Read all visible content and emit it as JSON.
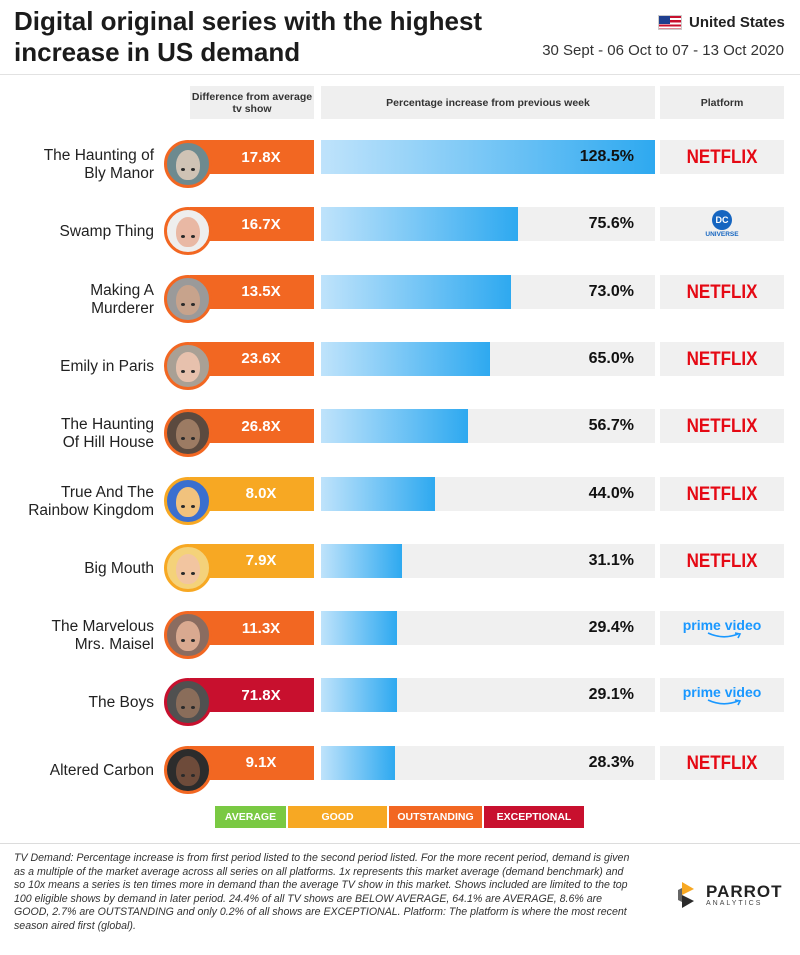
{
  "header": {
    "title_line1": "Digital original series with the highest",
    "title_line2": "increase in US demand",
    "country": "United States",
    "period": "30 Sept - 06 Oct to 07 - 13 Oct 2020"
  },
  "columns": {
    "multiplier": "Difference from average tv show",
    "increase": "Percentage increase from previous week",
    "platform": "Platform"
  },
  "colors": {
    "average": "#7ac943",
    "good": "#f7a823",
    "outstanding": "#f26722",
    "exceptional": "#c8102e",
    "bar_start": "#bfe3fb",
    "bar_end": "#2ea9f0",
    "netflix": "#e50914",
    "prime": "#1a98ff"
  },
  "chart_data": {
    "type": "bar",
    "xlabel": "Percentage increase from previous week",
    "ylabel": "",
    "xlim": [
      0,
      128.5
    ],
    "categories": [
      "The Haunting of Bly Manor",
      "Swamp Thing",
      "Making A Murderer",
      "Emily in Paris",
      "The Haunting Of Hill House",
      "True And The Rainbow Kingdom",
      "Big Mouth",
      "The Marvelous Mrs. Maisel",
      "The Boys",
      "Altered Carbon"
    ],
    "rows": [
      {
        "label1": "The Haunting of",
        "label2": "Bly Manor",
        "multiplier": "17.8X",
        "tier": "outstanding",
        "value": 128.5,
        "value_label": "128.5%",
        "platform": "NETFLIX",
        "platform_icon": "netflix-logo"
      },
      {
        "label1": "Swamp Thing",
        "label2": "",
        "multiplier": "16.7X",
        "tier": "outstanding",
        "value": 75.6,
        "value_label": "75.6%",
        "platform": "DC",
        "platform_sub": "UNIVERSE",
        "platform_icon": "dc-universe-logo"
      },
      {
        "label1": "Making A",
        "label2": "Murderer",
        "multiplier": "13.5X",
        "tier": "outstanding",
        "value": 73.0,
        "value_label": "73.0%",
        "platform": "NETFLIX",
        "platform_icon": "netflix-logo"
      },
      {
        "label1": "Emily in Paris",
        "label2": "",
        "multiplier": "23.6X",
        "tier": "outstanding",
        "value": 65.0,
        "value_label": "65.0%",
        "platform": "NETFLIX",
        "platform_icon": "netflix-logo"
      },
      {
        "label1": "The Haunting",
        "label2": "Of Hill House",
        "multiplier": "26.8X",
        "tier": "outstanding",
        "value": 56.7,
        "value_label": "56.7%",
        "platform": "NETFLIX",
        "platform_icon": "netflix-logo"
      },
      {
        "label1": "True And The",
        "label2": "Rainbow Kingdom",
        "multiplier": "8.0X",
        "tier": "good",
        "value": 44.0,
        "value_label": "44.0%",
        "platform": "NETFLIX",
        "platform_icon": "netflix-logo"
      },
      {
        "label1": "Big Mouth",
        "label2": "",
        "multiplier": "7.9X",
        "tier": "good",
        "value": 31.1,
        "value_label": "31.1%",
        "platform": "NETFLIX",
        "platform_icon": "netflix-logo"
      },
      {
        "label1": "The Marvelous",
        "label2": "Mrs. Maisel",
        "multiplier": "11.3X",
        "tier": "outstanding",
        "value": 29.4,
        "value_label": "29.4%",
        "platform": "prime video",
        "platform_icon": "prime-video-logo"
      },
      {
        "label1": "The Boys",
        "label2": "",
        "multiplier": "71.8X",
        "tier": "exceptional",
        "value": 29.1,
        "value_label": "29.1%",
        "platform": "prime video",
        "platform_icon": "prime-video-logo"
      },
      {
        "label1": "Altered Carbon",
        "label2": "",
        "multiplier": "9.1X",
        "tier": "outstanding",
        "value": 28.3,
        "value_label": "28.3%",
        "platform": "NETFLIX",
        "platform_icon": "netflix-logo"
      }
    ],
    "legend": [
      {
        "label": "AVERAGE",
        "tier": "average"
      },
      {
        "label": "GOOD",
        "tier": "good"
      },
      {
        "label": "OUTSTANDING",
        "tier": "outstanding"
      },
      {
        "label": "EXCEPTIONAL",
        "tier": "exceptional"
      }
    ],
    "legend_position": "bottom"
  },
  "footnote": {
    "lead": "TV Demand",
    "text": ": Percentage increase is from first period listed to the second period listed. For the more recent period, demand is given as a multiple of the market average across all series on all platforms. 1x represents this market average (demand benchmark) and so 10x means a series is ten times more in demand than the average TV show in this market. Shows included are limited to the top 100 eligible shows by demand in later period. 24.4% of all TV shows are BELOW AVERAGE, 64.1% are AVERAGE, 8.6% are GOOD, 2.7% are OUTSTANDING and only 0.2% of all shows are EXCEPTIONAL. Platform: The platform is where the most recent season aired first (global)."
  },
  "brand": {
    "name": "PARROT",
    "sub": "ANALYTICS"
  }
}
